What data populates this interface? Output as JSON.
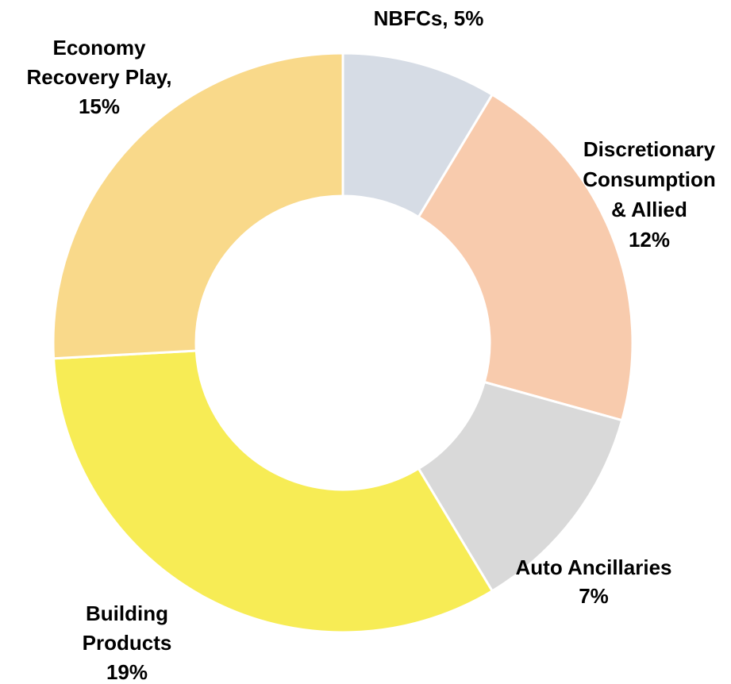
{
  "chart_data": {
    "type": "donut",
    "labels": [
      [
        "NBFCs, 5%"
      ],
      [
        "Discretionary",
        "Consumption",
        "& Allied",
        "12%"
      ],
      [
        "Auto Ancillaries",
        "7%"
      ],
      [
        "Building",
        "Products",
        "19%"
      ],
      [
        "Economy",
        "Recovery Play,",
        "15%"
      ]
    ],
    "values": [
      5,
      12,
      7,
      19,
      15
    ],
    "colors": [
      "#d6dce5",
      "#f8cbad",
      "#d9d9d9",
      "#f7ec55",
      "#f9d98a"
    ]
  }
}
